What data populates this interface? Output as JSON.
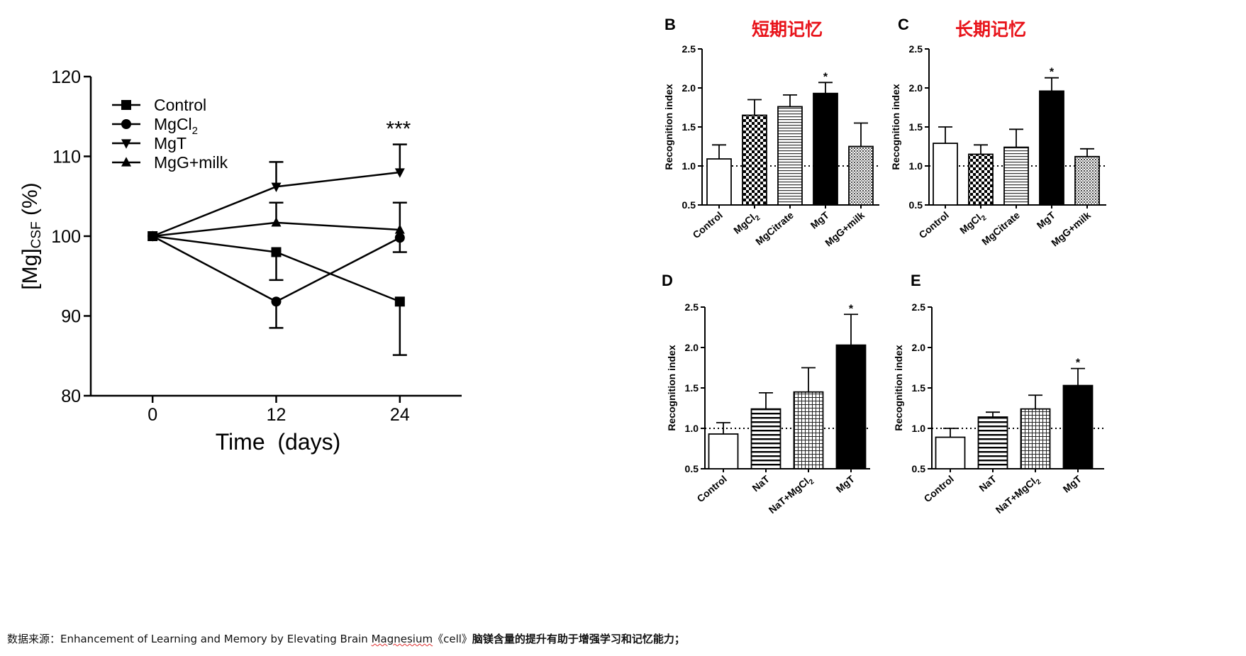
{
  "source_note": {
    "prefix": "数据来源：Enhancement of Learning and Memory by Elevating Brain ",
    "underlined": "Magnesium",
    "middle": "《cell》",
    "bold": "脑镁含量的提升有助于增强学习和记忆能力；"
  },
  "chart_data": [
    {
      "type": "line",
      "title": "",
      "xlabel": "Time  (days)",
      "ylabel": "[Mg]",
      "ylabel_subscript": "CSF",
      "ylabel_suffix": " (%)",
      "ylim": [
        80,
        120
      ],
      "yticks": [
        80,
        90,
        100,
        110,
        120
      ],
      "x": [
        0,
        12,
        24
      ],
      "xticks": [
        "0",
        "12",
        "24"
      ],
      "xlim": [
        -6,
        30
      ],
      "legend_position": "top-left",
      "annotation": {
        "text": "***",
        "x": 24,
        "y": 113.3
      },
      "series": [
        {
          "name": "Control",
          "name_base": "Control",
          "name_sub": "",
          "marker": "square",
          "values": [
            100,
            98.0,
            91.8
          ],
          "errors": [
            0,
            3.5,
            6.7
          ]
        },
        {
          "name": "MgCl2",
          "name_base": "MgCl",
          "name_sub": "2",
          "marker": "circle",
          "values": [
            100,
            91.8,
            99.8
          ],
          "errors": [
            0,
            3.3,
            1.8
          ]
        },
        {
          "name": "MgT",
          "name_base": "MgT",
          "name_sub": "",
          "marker": "triangle-down",
          "values": [
            100,
            106.2,
            108.0
          ],
          "errors": [
            0,
            3.1,
            3.5
          ]
        },
        {
          "name": "MgG+milk",
          "name_base": "MgG+milk",
          "name_sub": "",
          "marker": "triangle-up",
          "values": [
            100,
            101.7,
            100.8
          ],
          "errors": [
            0,
            2.5,
            3.4
          ]
        }
      ]
    },
    {
      "type": "bar",
      "panel_letter": "B",
      "title": "短期记忆",
      "ylabel": "Recognition index",
      "ylim": [
        0.5,
        2.5
      ],
      "yticks": [
        "0.5",
        "1.0",
        "1.5",
        "2.0",
        "2.5"
      ],
      "reference_line": 1.0,
      "categories": [
        "Control",
        "MgCl2",
        "MgCitrate",
        "MgT",
        "MgG+milk"
      ],
      "category_labels": [
        {
          "base": "Control",
          "sub": ""
        },
        {
          "base": "MgCl",
          "sub": "2"
        },
        {
          "base": "MgCitrate",
          "sub": ""
        },
        {
          "base": "MgT",
          "sub": ""
        },
        {
          "base": "MgG+milk",
          "sub": ""
        }
      ],
      "patterns": [
        "white",
        "checker",
        "hlines",
        "black",
        "dots"
      ],
      "values": [
        1.09,
        1.65,
        1.76,
        1.93,
        1.25
      ],
      "errors": [
        0.18,
        0.2,
        0.15,
        0.14,
        0.3
      ],
      "significance": [
        "",
        "",
        "",
        "*",
        ""
      ]
    },
    {
      "type": "bar",
      "panel_letter": "C",
      "title": "长期记忆",
      "ylabel": "Recognition index",
      "ylim": [
        0.5,
        2.5
      ],
      "yticks": [
        "0.5",
        "1.0",
        "1.5",
        "2.0",
        "2.5"
      ],
      "reference_line": 1.0,
      "categories": [
        "Control",
        "MgCl2",
        "MgCitrate",
        "MgT",
        "MgG+milk"
      ],
      "category_labels": [
        {
          "base": "Control",
          "sub": ""
        },
        {
          "base": "MgCl",
          "sub": "2"
        },
        {
          "base": "MgCitrate",
          "sub": ""
        },
        {
          "base": "MgT",
          "sub": ""
        },
        {
          "base": "MgG+milk",
          "sub": ""
        }
      ],
      "patterns": [
        "white",
        "checker",
        "hlines",
        "black",
        "dots"
      ],
      "values": [
        1.29,
        1.15,
        1.24,
        1.96,
        1.12
      ],
      "errors": [
        0.21,
        0.12,
        0.23,
        0.17,
        0.1
      ],
      "significance": [
        "",
        "",
        "",
        "*",
        ""
      ]
    },
    {
      "type": "bar",
      "panel_letter": "D",
      "title": "",
      "ylabel": "Recognition index",
      "ylim": [
        0.5,
        2.5
      ],
      "yticks": [
        "0.5",
        "1.0",
        "1.5",
        "2.0",
        "2.5"
      ],
      "reference_line": 1.0,
      "categories": [
        "Control",
        "NaT",
        "NaT+MgCl2",
        "MgT"
      ],
      "category_labels": [
        {
          "base": "Control",
          "sub": ""
        },
        {
          "base": "NaT",
          "sub": ""
        },
        {
          "base": "NaT+MgCl",
          "sub": "2"
        },
        {
          "base": "MgT",
          "sub": ""
        }
      ],
      "patterns": [
        "white",
        "hlines-thick",
        "grid",
        "black"
      ],
      "values": [
        0.93,
        1.24,
        1.45,
        2.03
      ],
      "errors": [
        0.14,
        0.2,
        0.3,
        0.38
      ],
      "significance": [
        "",
        "",
        "",
        "*"
      ]
    },
    {
      "type": "bar",
      "panel_letter": "E",
      "title": "",
      "ylabel": "Recognition index",
      "ylim": [
        0.5,
        2.5
      ],
      "yticks": [
        "0.5",
        "1.0",
        "1.5",
        "2.0",
        "2.5"
      ],
      "reference_line": 1.0,
      "categories": [
        "Control",
        "NaT",
        "NaT+MgCl2",
        "MgT"
      ],
      "category_labels": [
        {
          "base": "Control",
          "sub": ""
        },
        {
          "base": "NaT",
          "sub": ""
        },
        {
          "base": "NaT+MgCl",
          "sub": "2"
        },
        {
          "base": "MgT",
          "sub": ""
        }
      ],
      "patterns": [
        "white",
        "hlines-thick",
        "grid",
        "black"
      ],
      "values": [
        0.89,
        1.14,
        1.24,
        1.53
      ],
      "errors": [
        0.11,
        0.06,
        0.17,
        0.21
      ],
      "significance": [
        "",
        "",
        "",
        "*"
      ]
    }
  ],
  "colors": {
    "title_red": "#e8141b",
    "ink": "#000000"
  }
}
